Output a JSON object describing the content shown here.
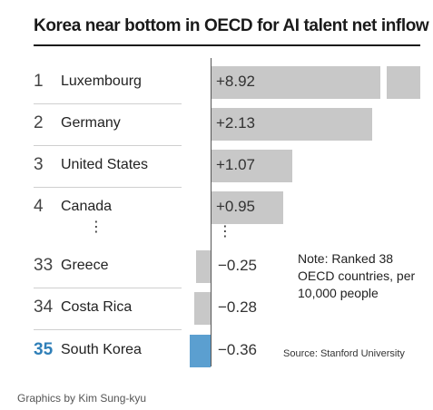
{
  "chart_data": {
    "type": "bar",
    "orientation": "horizontal",
    "title": "Korea near bottom in OECD for AI talent net inflow",
    "rows": [
      {
        "rank": "1",
        "country": "Luxembourg",
        "value": 8.92,
        "label": "+8.92",
        "highlight": false,
        "truncated": true
      },
      {
        "rank": "2",
        "country": "Germany",
        "value": 2.13,
        "label": "+2.13",
        "highlight": false
      },
      {
        "rank": "3",
        "country": "United States",
        "value": 1.07,
        "label": "+1.07",
        "highlight": false
      },
      {
        "rank": "4",
        "country": "Canada",
        "value": 0.95,
        "label": "+0.95",
        "highlight": false
      },
      {
        "rank": "33",
        "country": "Greece",
        "value": -0.25,
        "label": "−0.25",
        "highlight": false
      },
      {
        "rank": "34",
        "country": "Costa Rica",
        "value": -0.28,
        "label": "−0.28",
        "highlight": false
      },
      {
        "rank": "35",
        "country": "South Korea",
        "value": -0.36,
        "label": "−0.36",
        "highlight": true
      }
    ],
    "ellipsis": "⋮",
    "note": "Note: Ranked 38 OECD countries, per 10,000 people",
    "source": "Source: Stanford University",
    "colors": {
      "bar": "#c8c8c8",
      "highlight": "#5b9fd0",
      "highlight_text": "#2f7fb8"
    }
  },
  "credit": "Graphics by Kim Sung-kyu"
}
